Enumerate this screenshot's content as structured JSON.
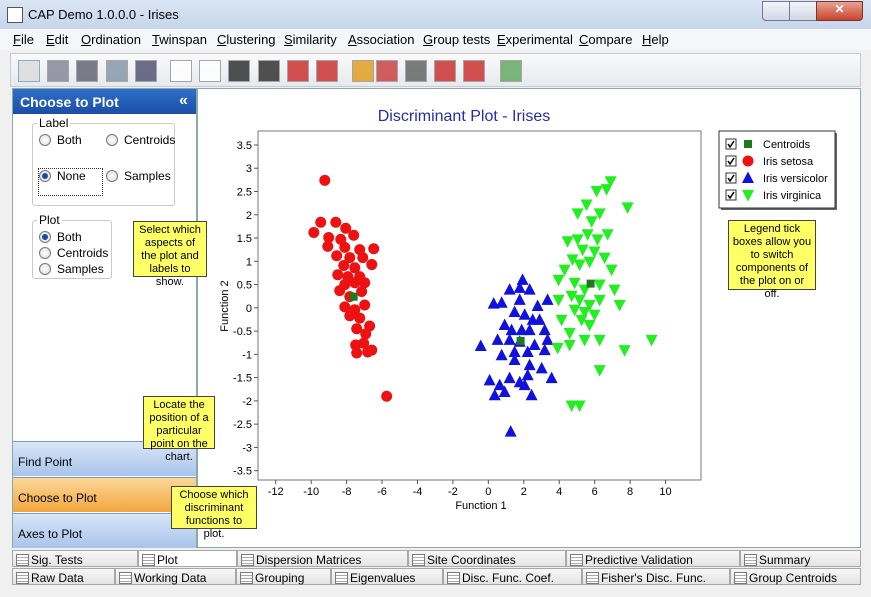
{
  "window": {
    "title": "CAP Demo 1.0.0.0 - Irises"
  },
  "menu": [
    "File",
    "Edit",
    "Ordination",
    "Twinspan",
    "Clustering",
    "Similarity",
    "Association",
    "Group tests",
    "Experimental",
    "Compare",
    "Help"
  ],
  "panel": {
    "title": "Choose to Plot",
    "collapse": "«",
    "label_group": {
      "title": "Label",
      "options": [
        "Both",
        "Centroids",
        "None",
        "Samples"
      ],
      "selected": 2
    },
    "plot_group": {
      "title": "Plot",
      "options": [
        "Both",
        "Centroids",
        "Samples"
      ],
      "selected": 0
    },
    "buttons": [
      "Find Point",
      "Choose to Plot",
      "Axes to Plot"
    ],
    "active_button": 1
  },
  "callouts": [
    "Select which aspects of the plot and labels to show.",
    "Locate the position of a particular point on the chart.",
    "Choose which discriminant functions to plot.",
    "Legend tick boxes allow you to switch components of the plot on or off."
  ],
  "tabs_row1": [
    "Sig. Tests",
    "Plot",
    "Dispersion Matrices",
    "Site Coordinates",
    "Predictive Validation",
    "Summary"
  ],
  "tabs_row2": [
    "Raw Data",
    "Working Data",
    "Grouping",
    "Eigenvalues",
    "Disc. Func. Coef.",
    "Fisher's Disc. Func.",
    "Group Centroids"
  ],
  "active_tab": 1,
  "chart_data": {
    "type": "scatter",
    "title": "Discriminant Plot - Irises",
    "x_label": "Function 1",
    "y_label": "Function 2",
    "xlim": [
      -13,
      12
    ],
    "ylim": [
      -3.7,
      3.8
    ],
    "xticks": [
      -12,
      -10,
      -8,
      -6,
      -4,
      -2,
      0,
      2,
      4,
      6,
      8,
      10
    ],
    "yticks": [
      -3.5,
      -3,
      -2.5,
      -2,
      -1.5,
      -1,
      -0.5,
      0,
      0.5,
      1,
      1.5,
      2,
      2.5,
      3,
      3.5
    ],
    "legend": "upper right",
    "series": [
      {
        "name": "Centroids",
        "color": "#1e7a1e",
        "marker": "square",
        "x": [
          -7.6,
          1.82,
          5.77
        ],
        "values": [
          0.24,
          -0.71,
          0.52
        ]
      },
      {
        "name": "Iris setosa",
        "color": "#ee1111",
        "marker": "circle",
        "x": [
          -9.23,
          -9.46,
          -8.61,
          -9.85,
          -9.01,
          -8.05,
          -8.33,
          -7.6,
          -9.06,
          -8.1,
          -7.26,
          -6.47,
          -8.56,
          -7.82,
          -7.09,
          -8.16,
          -7.54,
          -6.58,
          -8.5,
          -7.93,
          -7.26,
          -8.1,
          -7.54,
          -6.98,
          -8.39,
          -7.82,
          -7.15,
          -8.1,
          -7.54,
          -6.98,
          -7.82,
          -7.26,
          -6.7,
          -7.43,
          -6.92,
          -7.49,
          -7.04,
          -6.58,
          -7.43,
          -6.81,
          -5.74
        ],
        "values": [
          2.74,
          1.84,
          1.84,
          1.62,
          1.51,
          1.71,
          1.47,
          1.56,
          1.32,
          1.3,
          1.25,
          1.27,
          1.12,
          1.08,
          1.08,
          0.91,
          0.86,
          0.93,
          0.71,
          0.67,
          0.67,
          0.5,
          0.54,
          0.54,
          0.37,
          0.24,
          0.35,
          0.02,
          -0.04,
          0.06,
          -0.17,
          -0.22,
          -0.39,
          -0.45,
          -0.56,
          -0.8,
          -0.76,
          -0.91,
          -0.97,
          -0.95,
          -1.9
        ]
      },
      {
        "name": "Iris versicolor",
        "color": "#1111dd",
        "marker": "triangle",
        "x": [
          1.26,
          -0.43,
          0.3,
          0.75,
          1.2,
          1.77,
          1.93,
          2.33,
          2.78,
          3.34,
          1.77,
          1.48,
          2.05,
          2.5,
          0.92,
          1.31,
          1.88,
          2.33,
          2.89,
          3.18,
          0.52,
          1.2,
          1.77,
          2.61,
          3.34,
          0.75,
          1.48,
          2.22,
          3.18,
          0.07,
          0.64,
          1.2,
          1.77,
          2.22,
          0.36,
          0.92,
          2.05,
          2.44,
          3.57,
          1.48,
          2.33,
          3.01
        ],
        "values": [
          -2.66,
          -0.82,
          0.09,
          0.11,
          0.39,
          0.43,
          0.6,
          0.39,
          0.04,
          0.17,
          0.17,
          -0.09,
          -0.15,
          -0.26,
          -0.37,
          -0.48,
          -0.48,
          -0.48,
          -0.26,
          -0.48,
          -0.69,
          -0.69,
          -0.73,
          -0.8,
          -0.69,
          -1.02,
          -0.95,
          -0.95,
          -0.91,
          -1.56,
          -1.66,
          -1.51,
          -1.6,
          -1.45,
          -1.88,
          -1.81,
          -1.66,
          -1.88,
          -1.51,
          -1.12,
          -1.23,
          -1.3
        ]
      },
      {
        "name": "Iris virginica",
        "color": "#22ee22",
        "marker": "triangle-down",
        "x": [
          6.9,
          6.11,
          6.67,
          5.54,
          5.04,
          6.28,
          5.83,
          7.86,
          4.47,
          5.04,
          5.6,
          6.16,
          6.73,
          5.32,
          5.99,
          4.75,
          4.3,
          5.15,
          5.71,
          6.56,
          6.95,
          3.96,
          4.87,
          5.43,
          6.28,
          7.12,
          3.96,
          4.7,
          5.15,
          5.71,
          6.28,
          4.87,
          5.43,
          5.99,
          4.13,
          5.26,
          5.71,
          7.41,
          4.59,
          5.43,
          6.28,
          3.91,
          4.59,
          7.69,
          9.21,
          6.28,
          4.7,
          5.15
        ],
        "values": [
          2.72,
          2.51,
          2.55,
          2.22,
          2.03,
          2.03,
          1.86,
          2.16,
          1.43,
          1.47,
          1.58,
          1.47,
          1.58,
          1.25,
          1.21,
          1.04,
          0.82,
          0.93,
          0.99,
          1.08,
          0.82,
          0.6,
          0.54,
          0.39,
          0.5,
          0.39,
          0.17,
          0.26,
          0.17,
          0.06,
          0.17,
          -0.04,
          -0.09,
          -0.15,
          -0.26,
          -0.26,
          -0.37,
          0.06,
          -0.54,
          -0.69,
          -0.69,
          -0.86,
          -0.8,
          -0.91,
          -0.69,
          -1.34,
          -2.1,
          -2.1
        ]
      }
    ]
  }
}
